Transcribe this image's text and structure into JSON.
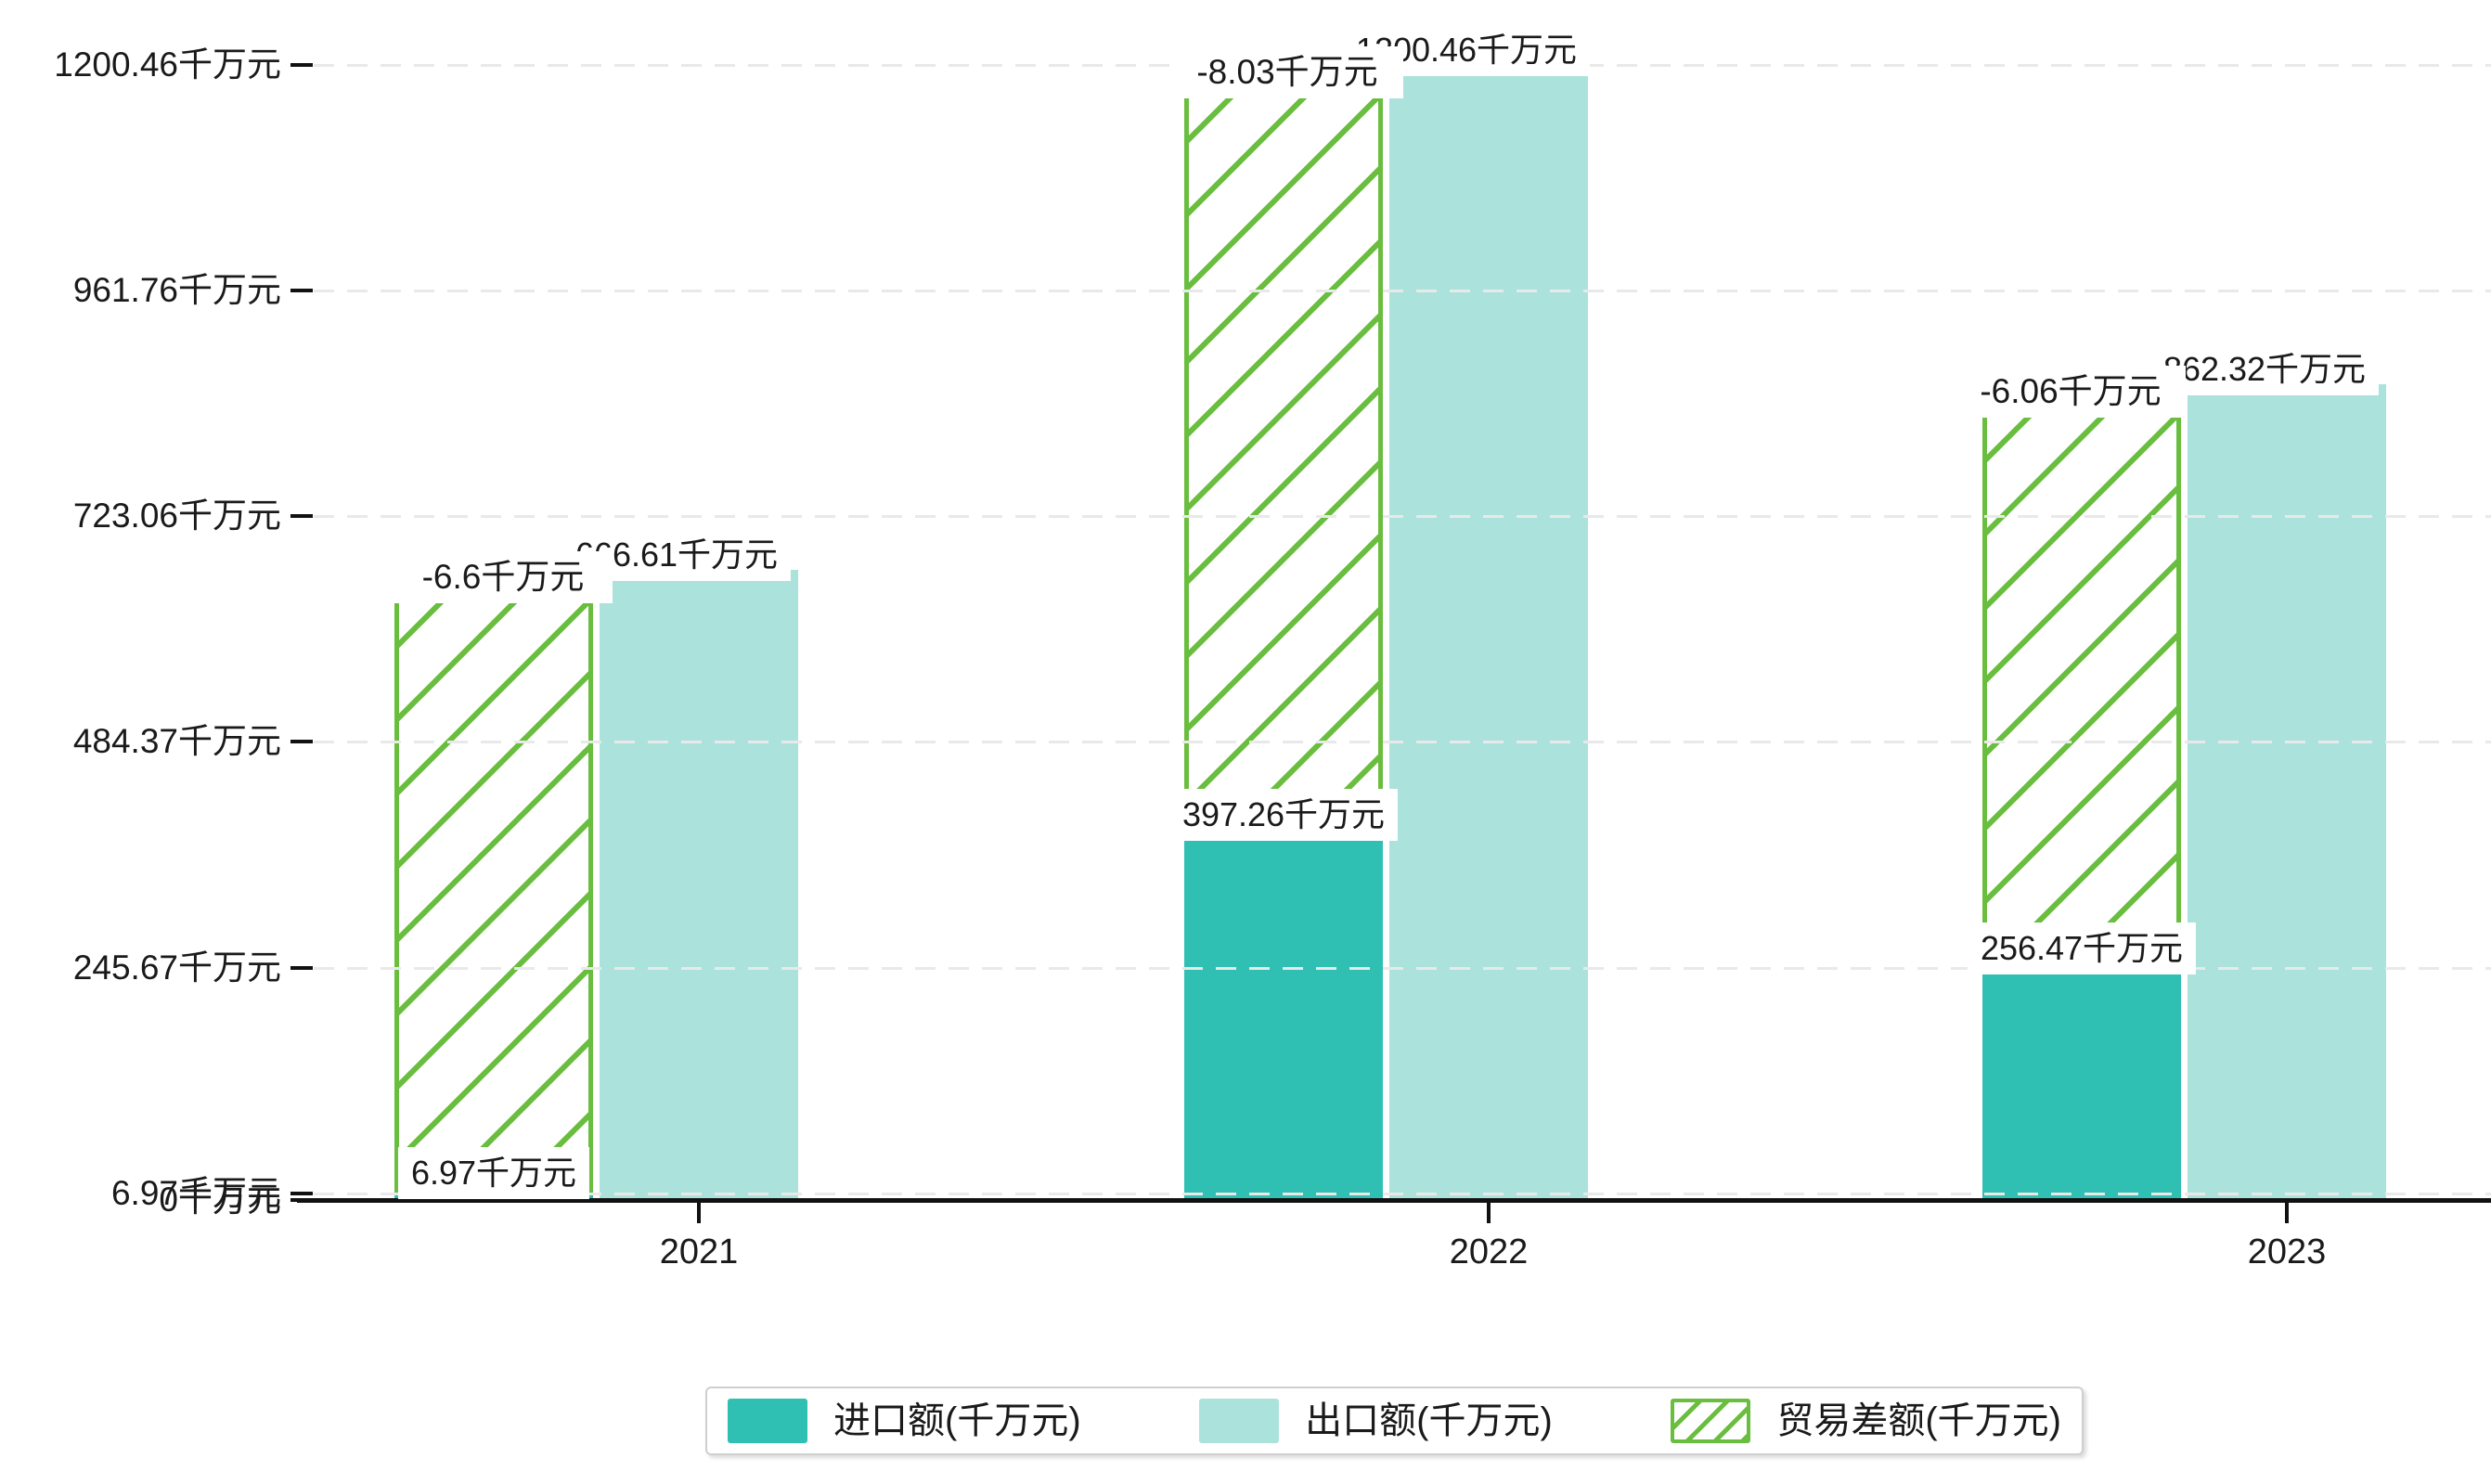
{
  "chart_data": {
    "type": "bar",
    "title": "",
    "categories": [
      "2021",
      "2022",
      "2023"
    ],
    "unit": "千万元",
    "series": [
      {
        "name": "进口额(千万元)",
        "style": "solid",
        "color": "#2fbfb3",
        "values": [
          6.97,
          397.26,
          256.47
        ],
        "data_labels": [
          "6.97千万元",
          "397.26千万元",
          "256.47千万元"
        ]
      },
      {
        "name": "出口额(千万元)",
        "style": "solid",
        "color": "#abe3dc",
        "values": [
          666.61,
          1200.46,
          862.32
        ],
        "data_labels": [
          "666.61千万元",
          "1200.46千万元",
          "862.32千万元"
        ]
      },
      {
        "name": "贸易差额(千万元)",
        "style": "hatched",
        "color": "#6abe3f",
        "values": [
          -6.6,
          -8.03,
          -6.06
        ],
        "data_labels": [
          "-6.6千万元",
          "-8.03千万元",
          "-6.06千万元"
        ],
        "note": "hatched bar drawn as a range from the import value up to the export value"
      }
    ],
    "y_axis": {
      "tick_values": [
        0,
        6.97,
        245.67,
        484.37,
        723.06,
        961.76,
        1200.46
      ],
      "tick_labels": [
        "0千万元",
        "6.97千万元",
        "245.67千万元",
        "484.37千万元",
        "723.06千万元",
        "961.76千万元",
        "1200.46千万元"
      ],
      "range": [
        0,
        1268
      ]
    },
    "x_axis": {
      "tick_labels": [
        "2021",
        "2022",
        "2023"
      ]
    },
    "legend": {
      "position": "bottom",
      "items": [
        "进口额(千万元)",
        "出口额(千万元)",
        "贸易差额(千万元)"
      ]
    },
    "grid": {
      "horizontal": true,
      "style": "dashed",
      "color": "#e9e9e9"
    }
  },
  "colors": {
    "import_bar": "#2fbfb3",
    "export_bar": "#abe3dc",
    "balance_hatch": "#6abe3f",
    "gridline": "#e9e9e9",
    "axis": "#111111",
    "text": "#1a1a1a",
    "label_background": "#ffffff",
    "legend_border": "#cfcfcf",
    "background": "#ffffff"
  }
}
